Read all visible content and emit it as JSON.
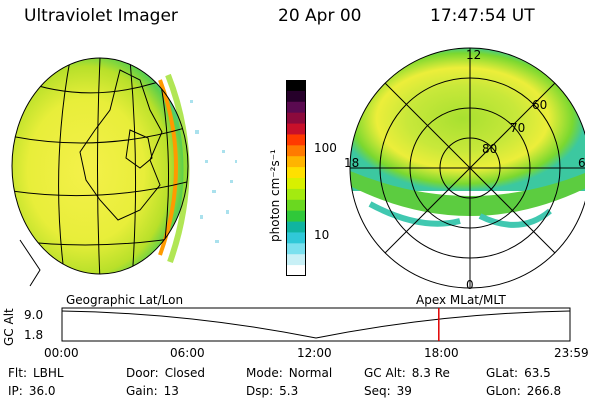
{
  "header": {
    "instrument": "Ultraviolet Imager",
    "date": "20 Apr 00",
    "time": "17:47:54 UT"
  },
  "panels": {
    "left_projection": "Geographic Lat/Lon",
    "right_projection": "Apex MLat/MLT"
  },
  "polar_plot": {
    "mlt_labels": [
      "12",
      "18",
      "6",
      "0"
    ],
    "lat_labels": [
      "60",
      "70",
      "80"
    ]
  },
  "colorbar": {
    "unit_label": "photon cm⁻²s⁻¹",
    "ticks": [
      "100",
      "10"
    ],
    "colors": [
      "#000000",
      "#26002a",
      "#5a0a50",
      "#8c0a3c",
      "#c8102a",
      "#ff3a00",
      "#ff7a00",
      "#ffb400",
      "#ffe000",
      "#d8f000",
      "#a4ea10",
      "#6ad820",
      "#30c83a",
      "#10b4a0",
      "#30c8d8",
      "#7ae0ee",
      "#c8f0f6",
      "#ffffff"
    ]
  },
  "altitude_plot": {
    "ylabel": "GC Alt",
    "yticks": [
      "9.0",
      "1.8"
    ],
    "xticks": [
      "00:00",
      "06:00",
      "12:00",
      "18:00",
      "23:59"
    ],
    "current_time_hours": 17.8,
    "marker_color": "#e00000"
  },
  "info": {
    "row1": [
      {
        "label": "Flt:",
        "value": "LBHL"
      },
      {
        "label": "Door:",
        "value": "Closed"
      },
      {
        "label": "Mode:",
        "value": "Normal"
      },
      {
        "label": "GC Alt:",
        "value": "8.3 Re"
      },
      {
        "label": "GLat:",
        "value": "63.5"
      }
    ],
    "row2": [
      {
        "label": "IP:",
        "value": "36.0"
      },
      {
        "label": "Gain:",
        "value": "13"
      },
      {
        "label": "Dsp:",
        "value": "5.3"
      },
      {
        "label": "Seq:",
        "value": "39"
      },
      {
        "label": "GLon:",
        "value": "266.8"
      }
    ]
  }
}
